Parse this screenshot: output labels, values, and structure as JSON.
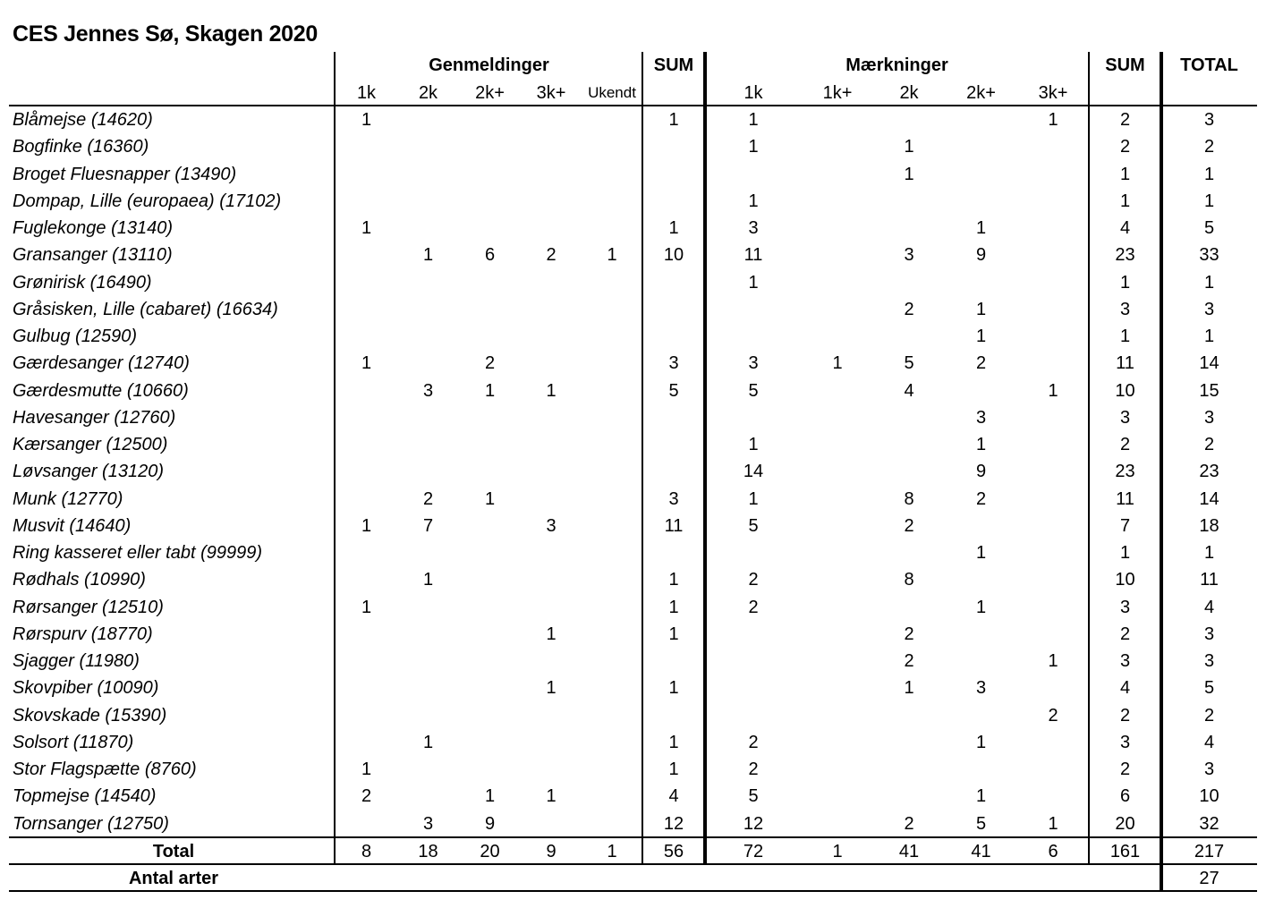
{
  "title": "CES Jennes Sø, Skagen 2020",
  "headers": {
    "genmeldinger": "Genmeldinger",
    "sum1": "SUM",
    "maerkninger": "Mærkninger",
    "sum2": "SUM",
    "total": "TOTAL"
  },
  "subheaders": [
    "1k",
    "2k",
    "2k+",
    "3k+",
    "Ukendt",
    "",
    "1k",
    "1k+",
    "2k",
    "2k+",
    "3k+",
    "",
    ""
  ],
  "rows": [
    {
      "name": "Blåmejse (14620)",
      "cells": [
        "1",
        "",
        "",
        "",
        "",
        "1",
        "1",
        "",
        "",
        "",
        "1",
        "2",
        "3"
      ]
    },
    {
      "name": "Bogfinke (16360)",
      "cells": [
        "",
        "",
        "",
        "",
        "",
        "",
        "1",
        "",
        "1",
        "",
        "",
        "2",
        "2"
      ]
    },
    {
      "name": "Broget Fluesnapper (13490)",
      "cells": [
        "",
        "",
        "",
        "",
        "",
        "",
        "",
        "",
        "1",
        "",
        "",
        "1",
        "1"
      ]
    },
    {
      "name": "Dompap, Lille (europaea) (17102)",
      "cells": [
        "",
        "",
        "",
        "",
        "",
        "",
        "1",
        "",
        "",
        "",
        "",
        "1",
        "1"
      ]
    },
    {
      "name": "Fuglekonge (13140)",
      "cells": [
        "1",
        "",
        "",
        "",
        "",
        "1",
        "3",
        "",
        "",
        "1",
        "",
        "4",
        "5"
      ]
    },
    {
      "name": "Gransanger (13110)",
      "cells": [
        "",
        "1",
        "6",
        "2",
        "1",
        "10",
        "11",
        "",
        "3",
        "9",
        "",
        "23",
        "33"
      ]
    },
    {
      "name": "Grønirisk (16490)",
      "cells": [
        "",
        "",
        "",
        "",
        "",
        "",
        "1",
        "",
        "",
        "",
        "",
        "1",
        "1"
      ]
    },
    {
      "name": "Gråsisken, Lille (cabaret) (16634)",
      "cells": [
        "",
        "",
        "",
        "",
        "",
        "",
        "",
        "",
        "2",
        "1",
        "",
        "3",
        "3"
      ]
    },
    {
      "name": "Gulbug (12590)",
      "cells": [
        "",
        "",
        "",
        "",
        "",
        "",
        "",
        "",
        "",
        "1",
        "",
        "1",
        "1"
      ]
    },
    {
      "name": "Gærdesanger (12740)",
      "cells": [
        "1",
        "",
        "2",
        "",
        "",
        "3",
        "3",
        "1",
        "5",
        "2",
        "",
        "11",
        "14"
      ]
    },
    {
      "name": "Gærdesmutte (10660)",
      "cells": [
        "",
        "3",
        "1",
        "1",
        "",
        "5",
        "5",
        "",
        "4",
        "",
        "1",
        "10",
        "15"
      ]
    },
    {
      "name": "Havesanger (12760)",
      "cells": [
        "",
        "",
        "",
        "",
        "",
        "",
        "",
        "",
        "",
        "3",
        "",
        "3",
        "3"
      ]
    },
    {
      "name": "Kærsanger (12500)",
      "cells": [
        "",
        "",
        "",
        "",
        "",
        "",
        "1",
        "",
        "",
        "1",
        "",
        "2",
        "2"
      ]
    },
    {
      "name": "Løvsanger (13120)",
      "cells": [
        "",
        "",
        "",
        "",
        "",
        "",
        "14",
        "",
        "",
        "9",
        "",
        "23",
        "23"
      ]
    },
    {
      "name": "Munk (12770)",
      "cells": [
        "",
        "2",
        "1",
        "",
        "",
        "3",
        "1",
        "",
        "8",
        "2",
        "",
        "11",
        "14"
      ]
    },
    {
      "name": "Musvit (14640)",
      "cells": [
        "1",
        "7",
        "",
        "3",
        "",
        "11",
        "5",
        "",
        "2",
        "",
        "",
        "7",
        "18"
      ]
    },
    {
      "name": "Ring kasseret eller tabt (99999)",
      "cells": [
        "",
        "",
        "",
        "",
        "",
        "",
        "",
        "",
        "",
        "1",
        "",
        "1",
        "1"
      ]
    },
    {
      "name": "Rødhals (10990)",
      "cells": [
        "",
        "1",
        "",
        "",
        "",
        "1",
        "2",
        "",
        "8",
        "",
        "",
        "10",
        "11"
      ]
    },
    {
      "name": "Rørsanger (12510)",
      "cells": [
        "1",
        "",
        "",
        "",
        "",
        "1",
        "2",
        "",
        "",
        "1",
        "",
        "3",
        "4"
      ]
    },
    {
      "name": "Rørspurv (18770)",
      "cells": [
        "",
        "",
        "",
        "1",
        "",
        "1",
        "",
        "",
        "2",
        "",
        "",
        "2",
        "3"
      ]
    },
    {
      "name": "Sjagger (11980)",
      "cells": [
        "",
        "",
        "",
        "",
        "",
        "",
        "",
        "",
        "2",
        "",
        "1",
        "3",
        "3"
      ]
    },
    {
      "name": "Skovpiber (10090)",
      "cells": [
        "",
        "",
        "",
        "1",
        "",
        "1",
        "",
        "",
        "1",
        "3",
        "",
        "4",
        "5"
      ]
    },
    {
      "name": "Skovskade (15390)",
      "cells": [
        "",
        "",
        "",
        "",
        "",
        "",
        "",
        "",
        "",
        "",
        "2",
        "2",
        "2"
      ]
    },
    {
      "name": "Solsort (11870)",
      "cells": [
        "",
        "1",
        "",
        "",
        "",
        "1",
        "2",
        "",
        "",
        "1",
        "",
        "3",
        "4"
      ]
    },
    {
      "name": "Stor Flagspætte (8760)",
      "cells": [
        "1",
        "",
        "",
        "",
        "",
        "1",
        "2",
        "",
        "",
        "",
        "",
        "2",
        "3"
      ]
    },
    {
      "name": "Topmejse (14540)",
      "cells": [
        "2",
        "",
        "1",
        "1",
        "",
        "4",
        "5",
        "",
        "",
        "1",
        "",
        "6",
        "10"
      ]
    },
    {
      "name": "Tornsanger (12750)",
      "cells": [
        "",
        "3",
        "9",
        "",
        "",
        "12",
        "12",
        "",
        "2",
        "5",
        "1",
        "20",
        "32"
      ]
    }
  ],
  "total_row": {
    "name": "Total",
    "cells": [
      "8",
      "18",
      "20",
      "9",
      "1",
      "56",
      "72",
      "1",
      "41",
      "41",
      "6",
      "161",
      "217"
    ]
  },
  "antal_row": {
    "name": "Antal arter",
    "value": "27"
  }
}
